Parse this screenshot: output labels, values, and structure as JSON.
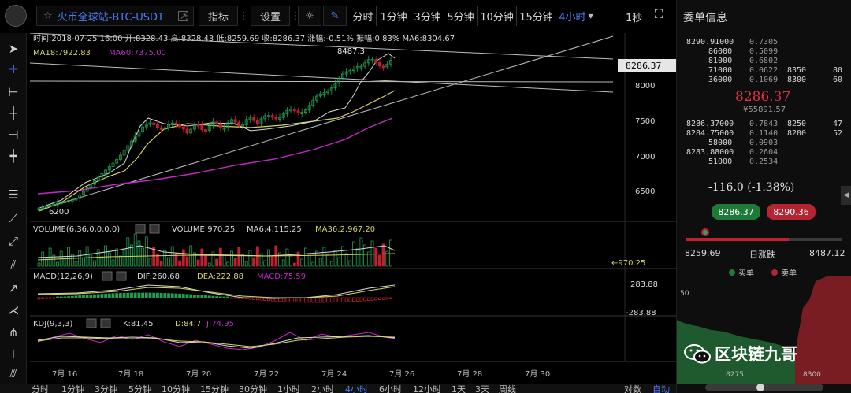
{
  "toolbar": {
    "symbol": "火币全球站-BTC-USDT",
    "indicators_label": "指标",
    "settings_label": "设置",
    "timeframes": [
      "分时",
      "1分钟",
      "3分钟",
      "5分钟",
      "10分钟",
      "15分钟"
    ],
    "active_timeframe": "4小时",
    "refresh_interval": "1秒"
  },
  "chart_header": {
    "line1": "时间:2018-07-25 16:00  开:8328.43  高:8328.43  低:8259.69  收:8286.37  涨幅:-0.51%  振幅:0.83%  MA6:8304.67",
    "ma18": "MA18:7922.83",
    "ma60": "MA60:7375.00",
    "high_marker": "8487.3",
    "low_marker": "6200",
    "price_tag": "8286.37",
    "y_ticks": [
      "8000",
      "7500",
      "7000",
      "6500"
    ]
  },
  "volume_panel": {
    "label": "VOLUME(6,36,0,0,0,0)",
    "volume": "VOLUME:970.25",
    "ma6": "MA6:4,115.25",
    "ma36": "MA36:2,967.20",
    "marker": "←970.25"
  },
  "macd_panel": {
    "label": "MACD(12,26,9)",
    "dif": "DIF:260.68",
    "dea": "DEA:222.88",
    "macd": "MACD:75.59",
    "tick_top": "283.88",
    "tick_bottom": "-283.88"
  },
  "kdj_panel": {
    "label": "KDJ(9,3,3)",
    "k": "K:81.45",
    "d": "D:84.7",
    "j": "J:74.95"
  },
  "x_axis": [
    "7月 16",
    "7月 18",
    "7月 20",
    "7月 22",
    "7月 24",
    "7月 26",
    "7月 28",
    "7月 30"
  ],
  "bottom_bar": {
    "timeframes": [
      "分时",
      "1分钟",
      "3分钟",
      "5分钟",
      "10分钟",
      "15分钟",
      "30分钟",
      "1小时",
      "2小时",
      "4小时",
      "6小时",
      "12小时",
      "1天",
      "3天",
      "周线"
    ],
    "active": "4小时",
    "log_label": "对数",
    "auto_label": "自动"
  },
  "order_book": {
    "title": "委单信息",
    "asks": [
      {
        "price": "8290.91000",
        "vol": "0.7305",
        "p2": "",
        "v2": ""
      },
      {
        "price": "86000",
        "vol": "0.5099",
        "p2": "",
        "v2": ""
      },
      {
        "price": "81000",
        "vol": "0.6802",
        "p2": "",
        "v2": ""
      },
      {
        "price": "71000",
        "vol": "0.0622",
        "p2": "8350",
        "v2": "80"
      },
      {
        "price": "36000",
        "vol": "0.1069",
        "p2": "8300",
        "v2": "60"
      }
    ],
    "last_price": "8286.37",
    "last_cny": "¥55891.57",
    "bids": [
      {
        "price": "8286.37000",
        "vol": "0.7843",
        "p2": "8250",
        "v2": "47"
      },
      {
        "price": "8284.75000",
        "vol": "0.1140",
        "p2": "8200",
        "v2": "52"
      },
      {
        "price": "58000",
        "vol": "0.0903",
        "p2": "",
        "v2": ""
      },
      {
        "price": "8283.88000",
        "vol": "0.2604",
        "p2": "",
        "v2": ""
      },
      {
        "price": "51000",
        "vol": "0.2534",
        "p2": "",
        "v2": ""
      }
    ],
    "change": "-116.0 (-1.38%)",
    "bid_btn": "8286.37",
    "ask_btn": "8290.36",
    "day_low": "8259.69",
    "day_label": "日涨跌",
    "day_high": "8487.12",
    "legend_buy": "买单",
    "legend_sell": "卖单",
    "depth_y": "50",
    "depth_x": [
      "8275",
      "8300"
    ],
    "watermark": "区块链九哥"
  },
  "colors": {
    "up": "#c21f2f",
    "down": "#22a055",
    "accent": "#4d7cf7",
    "ma_white": "#d9d9d9",
    "ma_yellow": "#d6d65a",
    "ma_purple": "#c32ac3"
  }
}
